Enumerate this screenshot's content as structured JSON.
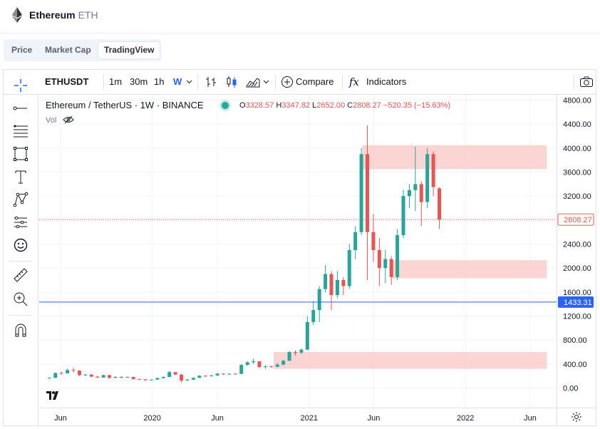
{
  "header": {
    "title": "Ethereum",
    "symbol": "ETH",
    "icon": "ethereum-logo-icon"
  },
  "tabs": [
    {
      "label": "Price"
    },
    {
      "label": "Market Cap"
    },
    {
      "label": "TradingView",
      "active": true
    }
  ],
  "toolbar": {
    "symbol": "ETHUSDT",
    "intervals": [
      "1m",
      "30m",
      "1h",
      "W"
    ],
    "active_interval": "W",
    "compare_label": "Compare",
    "indicators_label": "Indicators",
    "icons": [
      "bar-style-icon",
      "candle-style-icon",
      "area-style-icon",
      "chevron-down-icon",
      "plus-circle-icon",
      "fx-icon",
      "camera-icon"
    ]
  },
  "left_tools": [
    "crosshair-icon",
    "trend-line-icon",
    "fib-retracement-icon",
    "rectangle-icon",
    "text-icon",
    "pattern-icon",
    "prediction-icon",
    "emoji-icon",
    "ruler-icon",
    "zoom-in-icon",
    "magnet-icon"
  ],
  "legend": {
    "name": "Ethereum / TetherUS · 1W · BINANCE",
    "o_label": "O",
    "o": "3328.57",
    "h_label": "H",
    "h": "3347.82",
    "l_label": "L",
    "l": "2652.00",
    "c_label": "C",
    "c": "2808.27",
    "change": "−520.35 (−15.63%)",
    "volume_label": "Vol"
  },
  "price_tags": {
    "last": "2808.27",
    "line": "1433.31"
  },
  "colors": {
    "up": "#26a69a",
    "down": "#ef5350",
    "zone": "#f9c7c5",
    "line": "#2962ff"
  },
  "chart_data": {
    "type": "candlestick",
    "y_ticks": [
      "0.00",
      "400.00",
      "800.00",
      "1200.00",
      "1600.00",
      "2000.00",
      "2400.00",
      "2800.00",
      "3200.00",
      "3600.00",
      "4000.00",
      "4400.00",
      "4800.00"
    ],
    "ylim": [
      0,
      4800
    ],
    "x_ticks": [
      {
        "label": "Jun",
        "date": "2019-06"
      },
      {
        "label": "2020",
        "date": "2020-01"
      },
      {
        "label": "Jun",
        "date": "2020-06"
      },
      {
        "label": "2021",
        "date": "2021-01"
      },
      {
        "label": "Jun",
        "date": "2021-06"
      },
      {
        "label": "2022",
        "date": "2022-01"
      },
      {
        "label": "Jun",
        "date": "2022-06"
      }
    ],
    "x_range": [
      "2019-05-01",
      "2022-07-10"
    ],
    "horizontal_line": 1433.31,
    "last_price": 2808.27,
    "zones": [
      {
        "from": "2021-05-05",
        "to": "2022-07-10",
        "low": 3650,
        "high": 4050
      },
      {
        "from": "2021-07-15",
        "to": "2022-07-10",
        "low": 1830,
        "high": 2130
      },
      {
        "from": "2020-10-10",
        "to": "2022-07-10",
        "low": 320,
        "high": 600
      }
    ],
    "candles": [
      {
        "date": "2019-05-06",
        "o": 160,
        "h": 180,
        "l": 155,
        "c": 170
      },
      {
        "date": "2019-05-20",
        "o": 170,
        "h": 260,
        "l": 165,
        "c": 250
      },
      {
        "date": "2019-06-03",
        "o": 250,
        "h": 275,
        "l": 225,
        "c": 245
      },
      {
        "date": "2019-06-17",
        "o": 245,
        "h": 320,
        "l": 240,
        "c": 300
      },
      {
        "date": "2019-07-01",
        "o": 300,
        "h": 340,
        "l": 260,
        "c": 290
      },
      {
        "date": "2019-07-15",
        "o": 290,
        "h": 300,
        "l": 200,
        "c": 215
      },
      {
        "date": "2019-07-29",
        "o": 215,
        "h": 235,
        "l": 200,
        "c": 225
      },
      {
        "date": "2019-08-12",
        "o": 225,
        "h": 230,
        "l": 180,
        "c": 190
      },
      {
        "date": "2019-08-26",
        "o": 190,
        "h": 200,
        "l": 165,
        "c": 175
      },
      {
        "date": "2019-09-09",
        "o": 175,
        "h": 225,
        "l": 170,
        "c": 215
      },
      {
        "date": "2019-09-23",
        "o": 215,
        "h": 220,
        "l": 155,
        "c": 170
      },
      {
        "date": "2019-10-07",
        "o": 170,
        "h": 195,
        "l": 165,
        "c": 185
      },
      {
        "date": "2019-10-21",
        "o": 185,
        "h": 200,
        "l": 160,
        "c": 180
      },
      {
        "date": "2019-11-04",
        "o": 180,
        "h": 195,
        "l": 175,
        "c": 185
      },
      {
        "date": "2019-11-18",
        "o": 185,
        "h": 190,
        "l": 140,
        "c": 150
      },
      {
        "date": "2019-12-02",
        "o": 150,
        "h": 155,
        "l": 140,
        "c": 145
      },
      {
        "date": "2019-12-16",
        "o": 145,
        "h": 150,
        "l": 120,
        "c": 130
      },
      {
        "date": "2019-12-30",
        "o": 130,
        "h": 145,
        "l": 125,
        "c": 140
      },
      {
        "date": "2020-01-13",
        "o": 140,
        "h": 175,
        "l": 135,
        "c": 165
      },
      {
        "date": "2020-01-27",
        "o": 165,
        "h": 195,
        "l": 160,
        "c": 185
      },
      {
        "date": "2020-02-10",
        "o": 185,
        "h": 285,
        "l": 180,
        "c": 265
      },
      {
        "date": "2020-02-24",
        "o": 265,
        "h": 270,
        "l": 215,
        "c": 225
      },
      {
        "date": "2020-03-09",
        "o": 225,
        "h": 230,
        "l": 90,
        "c": 125
      },
      {
        "date": "2020-03-23",
        "o": 125,
        "h": 150,
        "l": 120,
        "c": 140
      },
      {
        "date": "2020-04-06",
        "o": 140,
        "h": 175,
        "l": 135,
        "c": 170
      },
      {
        "date": "2020-04-20",
        "o": 170,
        "h": 215,
        "l": 165,
        "c": 205
      },
      {
        "date": "2020-05-04",
        "o": 205,
        "h": 215,
        "l": 185,
        "c": 200
      },
      {
        "date": "2020-05-18",
        "o": 200,
        "h": 220,
        "l": 190,
        "c": 210
      },
      {
        "date": "2020-06-01",
        "o": 210,
        "h": 250,
        "l": 200,
        "c": 240
      },
      {
        "date": "2020-06-15",
        "o": 240,
        "h": 245,
        "l": 220,
        "c": 230
      },
      {
        "date": "2020-06-29",
        "o": 230,
        "h": 245,
        "l": 220,
        "c": 238
      },
      {
        "date": "2020-07-13",
        "o": 238,
        "h": 250,
        "l": 230,
        "c": 235
      },
      {
        "date": "2020-07-27",
        "o": 235,
        "h": 400,
        "l": 230,
        "c": 385
      },
      {
        "date": "2020-08-10",
        "o": 385,
        "h": 445,
        "l": 370,
        "c": 430
      },
      {
        "date": "2020-08-24",
        "o": 430,
        "h": 490,
        "l": 400,
        "c": 445
      },
      {
        "date": "2020-09-07",
        "o": 445,
        "h": 450,
        "l": 330,
        "c": 350
      },
      {
        "date": "2020-09-21",
        "o": 350,
        "h": 380,
        "l": 320,
        "c": 360
      },
      {
        "date": "2020-10-05",
        "o": 360,
        "h": 375,
        "l": 340,
        "c": 355
      },
      {
        "date": "2020-10-19",
        "o": 355,
        "h": 420,
        "l": 350,
        "c": 390
      },
      {
        "date": "2020-11-02",
        "o": 390,
        "h": 470,
        "l": 380,
        "c": 455
      },
      {
        "date": "2020-11-16",
        "o": 455,
        "h": 620,
        "l": 450,
        "c": 600
      },
      {
        "date": "2020-11-30",
        "o": 600,
        "h": 625,
        "l": 540,
        "c": 590
      },
      {
        "date": "2020-12-14",
        "o": 590,
        "h": 660,
        "l": 565,
        "c": 640
      },
      {
        "date": "2020-12-28",
        "o": 640,
        "h": 1200,
        "l": 630,
        "c": 1100
      },
      {
        "date": "2021-01-11",
        "o": 1100,
        "h": 1450,
        "l": 1050,
        "c": 1300
      },
      {
        "date": "2021-01-25",
        "o": 1300,
        "h": 1700,
        "l": 1100,
        "c": 1650
      },
      {
        "date": "2021-02-08",
        "o": 1650,
        "h": 2050,
        "l": 1600,
        "c": 1900
      },
      {
        "date": "2021-02-22",
        "o": 1900,
        "h": 1950,
        "l": 1300,
        "c": 1550
      },
      {
        "date": "2021-03-08",
        "o": 1550,
        "h": 1950,
        "l": 1500,
        "c": 1800
      },
      {
        "date": "2021-03-22",
        "o": 1800,
        "h": 1850,
        "l": 1550,
        "c": 1700
      },
      {
        "date": "2021-04-05",
        "o": 1700,
        "h": 2400,
        "l": 1650,
        "c": 2300
      },
      {
        "date": "2021-04-19",
        "o": 2300,
        "h": 2700,
        "l": 2150,
        "c": 2600
      },
      {
        "date": "2021-05-03",
        "o": 2600,
        "h": 4000,
        "l": 2550,
        "c": 3900
      },
      {
        "date": "2021-05-17",
        "o": 3900,
        "h": 4380,
        "l": 1800,
        "c": 2600
      },
      {
        "date": "2021-05-31",
        "o": 2600,
        "h": 2900,
        "l": 2100,
        "c": 2300
      },
      {
        "date": "2021-06-14",
        "o": 2300,
        "h": 2500,
        "l": 1700,
        "c": 2000
      },
      {
        "date": "2021-06-28",
        "o": 2000,
        "h": 2300,
        "l": 1750,
        "c": 2150
      },
      {
        "date": "2021-07-12",
        "o": 2150,
        "h": 2200,
        "l": 1720,
        "c": 1850
      },
      {
        "date": "2021-07-26",
        "o": 1850,
        "h": 2650,
        "l": 1800,
        "c": 2550
      },
      {
        "date": "2021-08-09",
        "o": 2550,
        "h": 3300,
        "l": 2500,
        "c": 3200
      },
      {
        "date": "2021-08-23",
        "o": 3200,
        "h": 3400,
        "l": 3000,
        "c": 3300
      },
      {
        "date": "2021-09-06",
        "o": 3300,
        "h": 4020,
        "l": 2950,
        "c": 3400
      },
      {
        "date": "2021-09-20",
        "o": 3400,
        "h": 3450,
        "l": 2700,
        "c": 3100
      },
      {
        "date": "2021-10-04",
        "o": 3100,
        "h": 4000,
        "l": 3000,
        "c": 3900
      },
      {
        "date": "2021-10-18",
        "o": 3900,
        "h": 3950,
        "l": 3200,
        "c": 3350
      },
      {
        "date": "2021-11-01",
        "o": 3328.57,
        "h": 3347.82,
        "l": 2652,
        "c": 2808.27
      }
    ]
  }
}
